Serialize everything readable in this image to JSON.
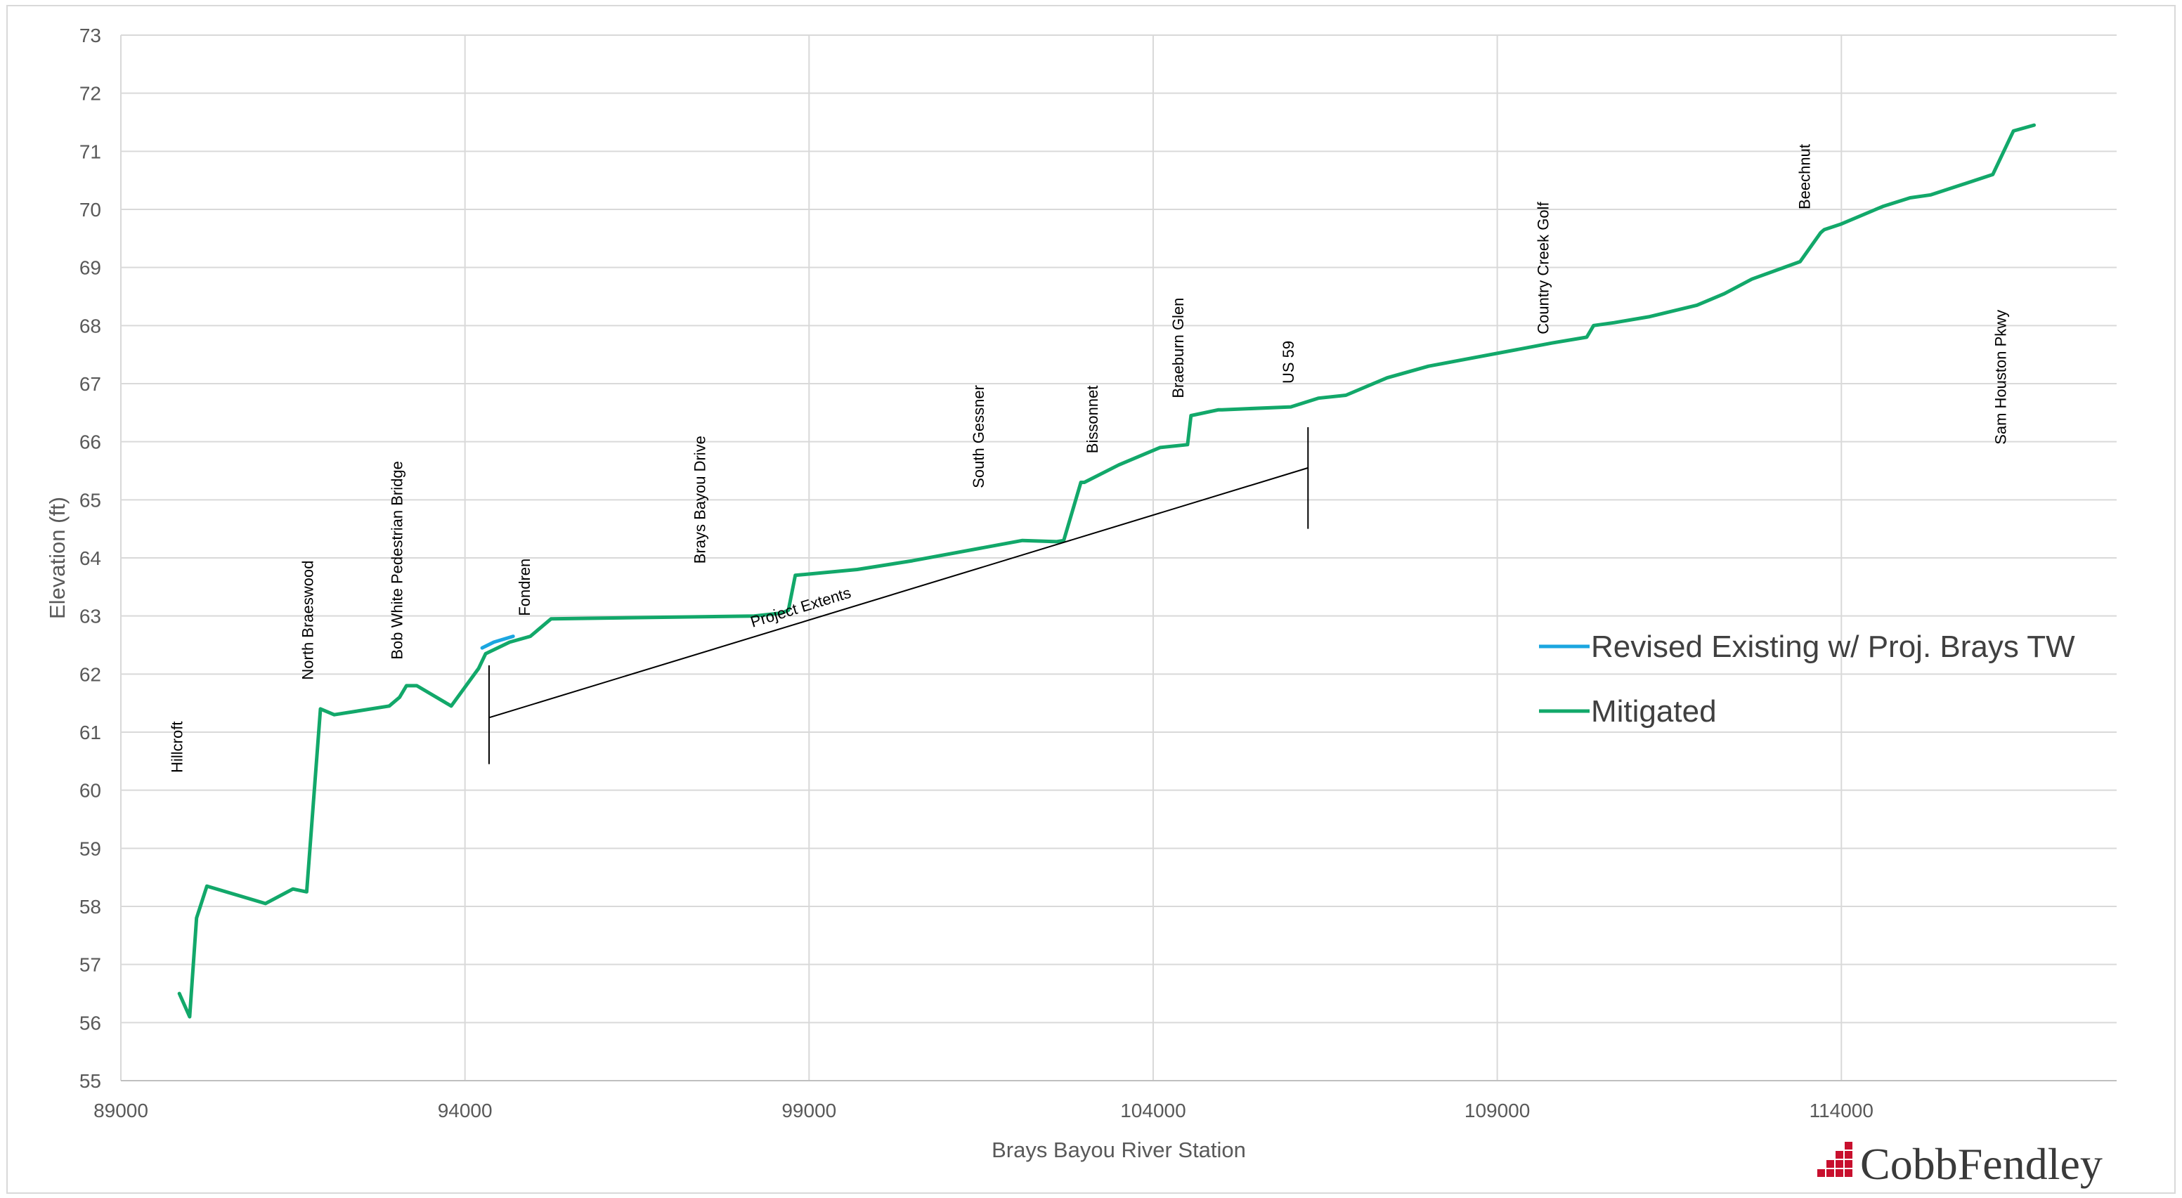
{
  "chart_data": {
    "type": "line",
    "title": "",
    "xlabel": "Brays Bayou River Station",
    "ylabel": "Elevation (ft)",
    "xlim": [
      89000,
      118000
    ],
    "ylim": [
      55,
      73
    ],
    "x_ticks": [
      89000,
      94000,
      99000,
      104000,
      109000,
      114000
    ],
    "y_ticks": [
      55,
      56,
      57,
      58,
      59,
      60,
      61,
      62,
      63,
      64,
      65,
      66,
      67,
      68,
      69,
      70,
      71,
      72,
      73
    ],
    "grid": true,
    "legend_position": "right",
    "series": [
      {
        "name": "Revised Existing w/ Proj. Brays TW",
        "color": "#1BA6E0",
        "x": [
          94250,
          94420,
          94700
        ],
        "y": [
          62.45,
          62.55,
          62.65
        ]
      },
      {
        "name": "Mitigated",
        "color": "#12A86A",
        "x": [
          89850,
          90000,
          90100,
          90250,
          91100,
          91500,
          91700,
          91900,
          92100,
          92900,
          93050,
          93150,
          93300,
          93800,
          94200,
          94300,
          94650,
          94950,
          95250,
          98200,
          98600,
          98700,
          98800,
          99700,
          100500,
          102100,
          102600,
          102700,
          102950,
          103000,
          103500,
          104100,
          104500,
          104550,
          104950,
          105000,
          106000,
          106400,
          106800,
          107400,
          108000,
          109800,
          110300,
          110400,
          110700,
          111200,
          111900,
          112300,
          112700,
          113400,
          113700,
          113750,
          114000,
          114600,
          115000,
          115300,
          116200,
          116500,
          116800
        ],
        "y": [
          56.5,
          56.1,
          57.8,
          58.35,
          58.05,
          58.3,
          58.25,
          61.4,
          61.3,
          61.45,
          61.6,
          61.8,
          61.8,
          61.45,
          62.1,
          62.35,
          62.55,
          62.65,
          62.95,
          63.0,
          63.05,
          63.1,
          63.7,
          63.8,
          63.95,
          64.3,
          64.28,
          64.3,
          65.3,
          65.3,
          65.6,
          65.9,
          65.95,
          66.45,
          66.55,
          66.55,
          66.6,
          66.75,
          66.8,
          67.1,
          67.3,
          67.7,
          67.8,
          68.0,
          68.05,
          68.15,
          68.35,
          68.55,
          68.8,
          69.1,
          69.6,
          69.65,
          69.75,
          70.05,
          70.2,
          70.25,
          70.6,
          71.35,
          71.45
        ]
      }
    ],
    "annotations": [
      {
        "text": "Hillcroft",
        "x": 89800,
        "y": 60.3
      },
      {
        "text": "North Braeswood",
        "x": 91700,
        "y": 61.9
      },
      {
        "text": "Bob White Pedestrian Bridge",
        "x": 93000,
        "y": 62.25
      },
      {
        "text": "Fondren",
        "x": 94850,
        "y": 63.0
      },
      {
        "text": "Brays Bayou Drive",
        "x": 97400,
        "y": 63.9
      },
      {
        "text": "South Gessner",
        "x": 101450,
        "y": 65.2
      },
      {
        "text": "Bissonnet",
        "x": 103100,
        "y": 65.8
      },
      {
        "text": "Braeburn Glen",
        "x": 104350,
        "y": 66.75
      },
      {
        "text": "US 59",
        "x": 105950,
        "y": 67.0
      },
      {
        "text": "Country Creek Golf",
        "x": 109650,
        "y": 67.85
      },
      {
        "text": "Beechnut",
        "x": 113450,
        "y": 70.0
      },
      {
        "text": "Sam Houston Pkwy",
        "x": 116300,
        "y": 65.95
      }
    ],
    "project_extents": {
      "label": "Project Extents",
      "start": {
        "x": 94350,
        "y": 61.25
      },
      "end": {
        "x": 106250,
        "y": 65.55
      },
      "start_tick": [
        60.45,
        62.15
      ],
      "end_tick": [
        64.5,
        66.25
      ]
    }
  },
  "branding": {
    "logo_text": "CobbFendley",
    "logo_color": "#C8102E"
  }
}
